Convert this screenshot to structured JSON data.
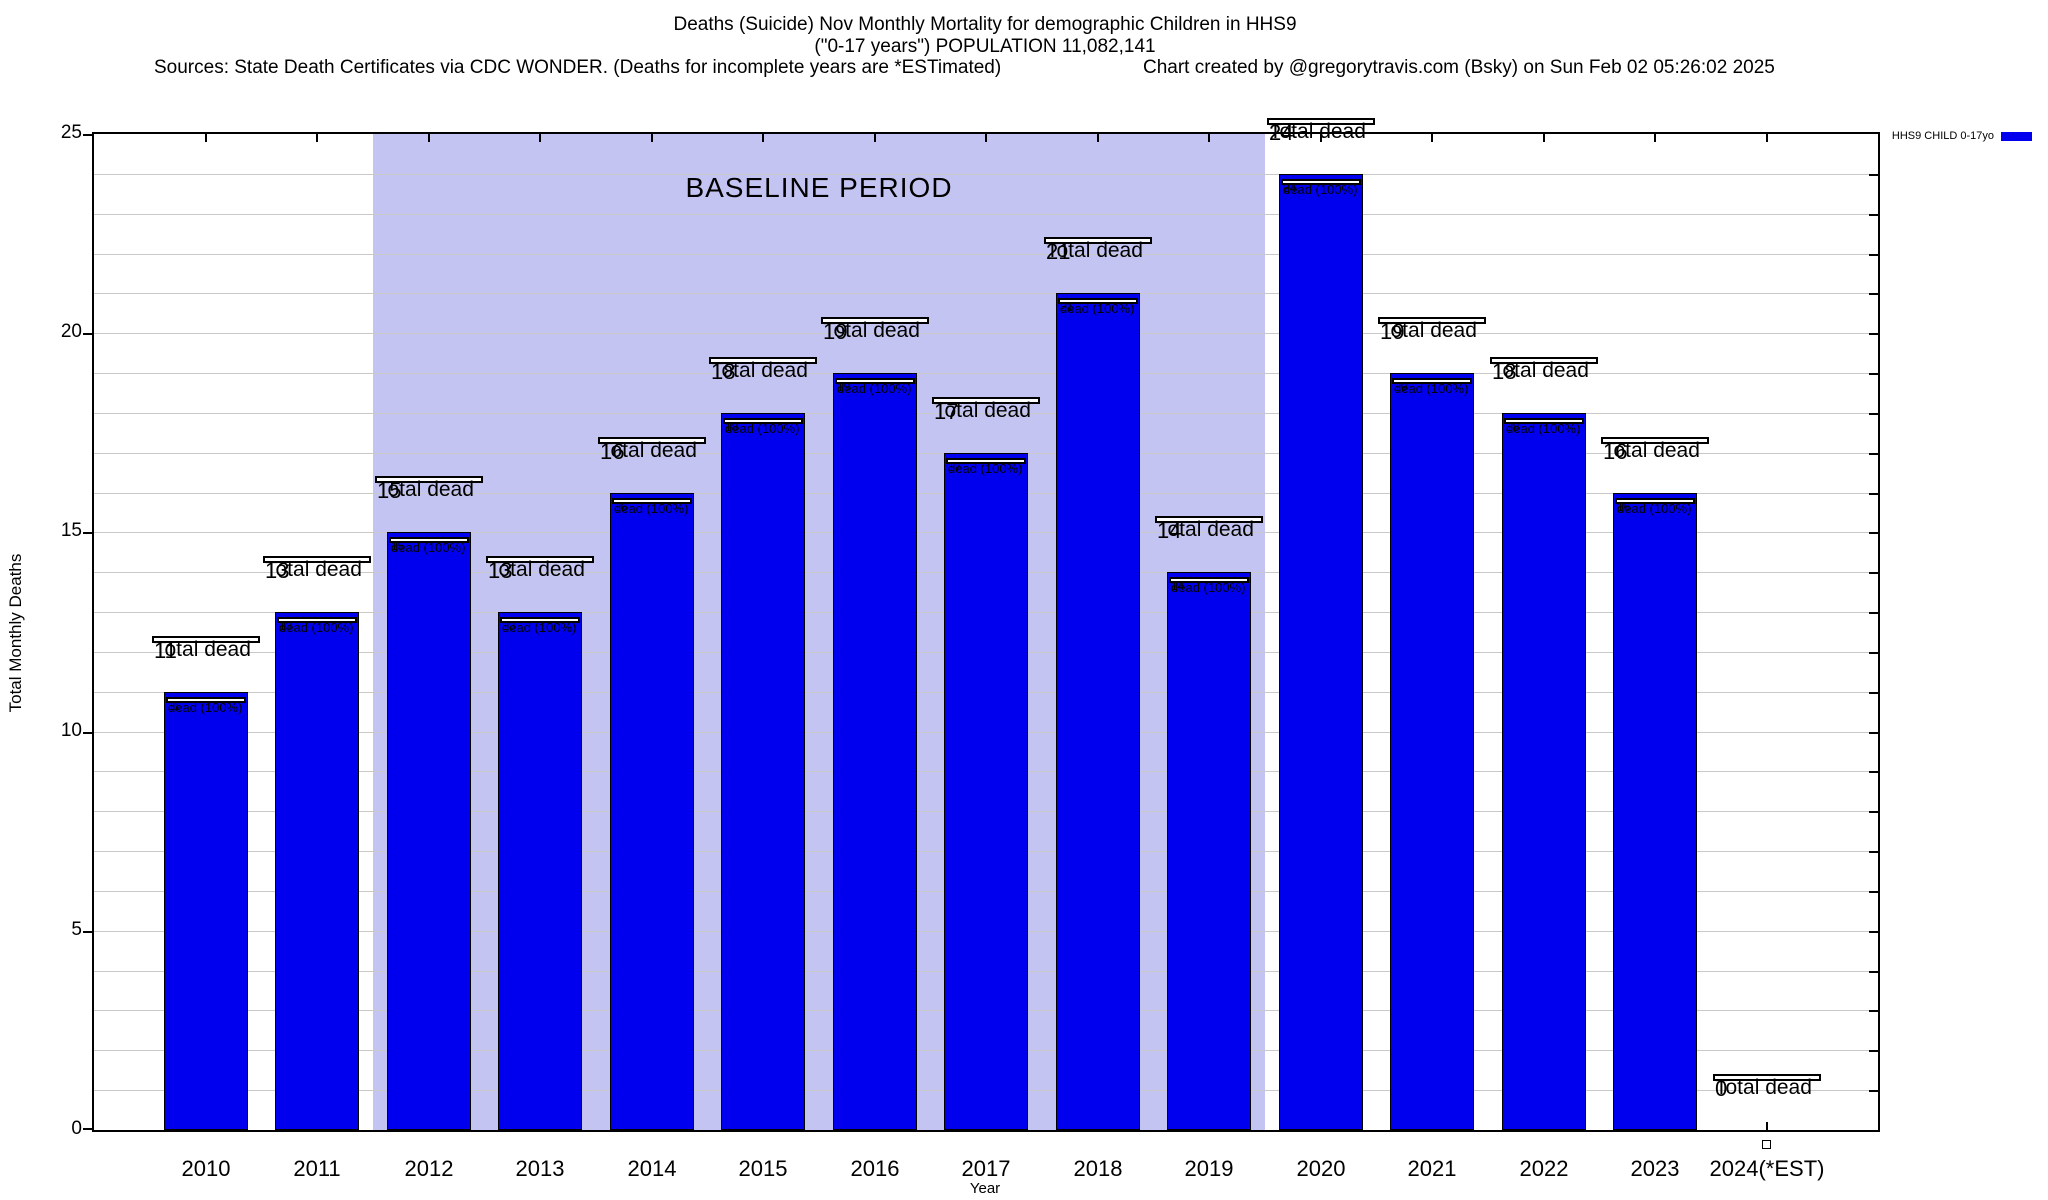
{
  "title": {
    "line1": "Deaths (Suicide) Nov Monthly Mortality for demographic Children in HHS9",
    "line2": "(\"0-17 years\") POPULATION 11,082,141",
    "sources": "Sources: State Death Certificates via CDC WONDER. (Deaths for incomplete years are *ESTimated)",
    "credit": "Chart created by @gregorytravis.com (Bsky) on Sun Feb 02 05:26:02 2025"
  },
  "legend": {
    "label": "HHS9 CHILD 0-17yo",
    "color": "#0000ee"
  },
  "chart_data": {
    "type": "bar",
    "title": "Deaths (Suicide) Nov Monthly Mortality for demographic Children in HHS9",
    "xlabel": "Year",
    "ylabel": "Total Monthly Deaths",
    "ylim": [
      0,
      25
    ],
    "yticks": [
      0,
      5,
      10,
      15,
      20,
      25
    ],
    "grid": "on",
    "legend_position": "top-right",
    "series_name": "HHS9 CHILD 0-17yo",
    "bar_color": "#0000ee",
    "categories": [
      "2010",
      "2011",
      "2012",
      "2013",
      "2014",
      "2015",
      "2016",
      "2017",
      "2018",
      "2019",
      "2020",
      "2021",
      "2022",
      "2023",
      "2024(*EST)"
    ],
    "values": [
      11,
      13,
      15,
      13,
      16,
      18,
      19,
      17,
      21,
      14,
      24,
      19,
      18,
      16,
      0
    ],
    "annotations": {
      "outer_label_line2": "Total dead",
      "inner_label_suffix": "dead (100%)",
      "baseline": {
        "label": "BASELINE PERIOD",
        "from_category": "2012",
        "to_category": "2019",
        "color": "#c4c4f2"
      }
    }
  }
}
